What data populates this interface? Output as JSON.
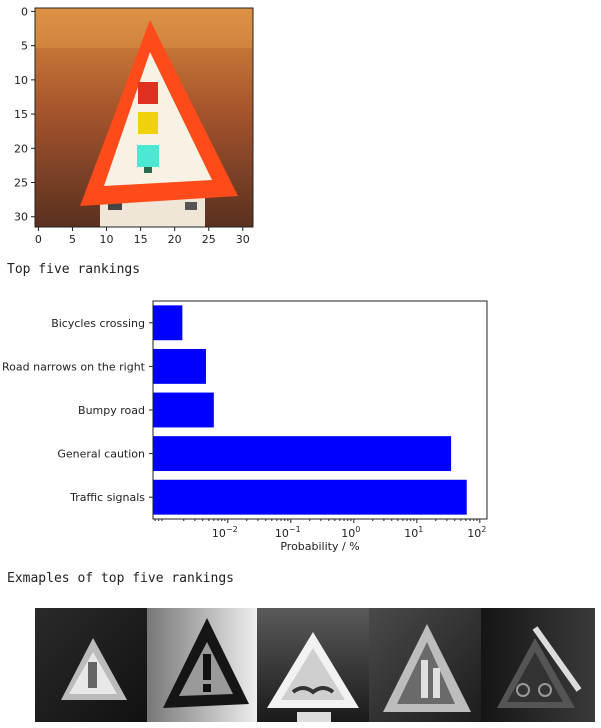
{
  "sign_image": {
    "x_ticks": [
      "0",
      "5",
      "10",
      "15",
      "20",
      "25",
      "30"
    ],
    "y_ticks": [
      "0",
      "5",
      "10",
      "15",
      "20",
      "25",
      "30"
    ],
    "colors": {
      "sky": "#b0582a",
      "border": "#ff4a1a",
      "inner": "#f7f2e4",
      "yellow": "#f0d20c",
      "cyan": "#4de8d4",
      "red": "#e03020"
    }
  },
  "headings": {
    "top_five": "Top five rankings",
    "examples": "Exmaples of top five rankings"
  },
  "chart_data": {
    "type": "bar",
    "orientation": "horizontal",
    "categories": [
      "Traffic signals",
      "General caution",
      "Bumpy road",
      "Road narrows on the right",
      "Bicycles crossing"
    ],
    "values": [
      62.0,
      35.0,
      0.006,
      0.0045,
      0.0019
    ],
    "xlabel": "Probability / %",
    "xscale": "log",
    "xlim": [
      0.00065,
      130
    ],
    "x_ticks": [
      {
        "value": 0.01,
        "label": "10",
        "exp": "−2"
      },
      {
        "value": 0.1,
        "label": "10",
        "exp": "−1"
      },
      {
        "value": 1,
        "label": "10",
        "exp": "0"
      },
      {
        "value": 10,
        "label": "10",
        "exp": "1"
      },
      {
        "value": 100,
        "label": "10",
        "exp": "2"
      }
    ],
    "bar_color": "#0000ff",
    "grid": false
  },
  "examples": {
    "count": 5,
    "descriptions": [
      "traffic-signals-example",
      "general-caution-example",
      "bumpy-road-example",
      "road-narrows-right-example",
      "bicycles-crossing-example"
    ]
  }
}
